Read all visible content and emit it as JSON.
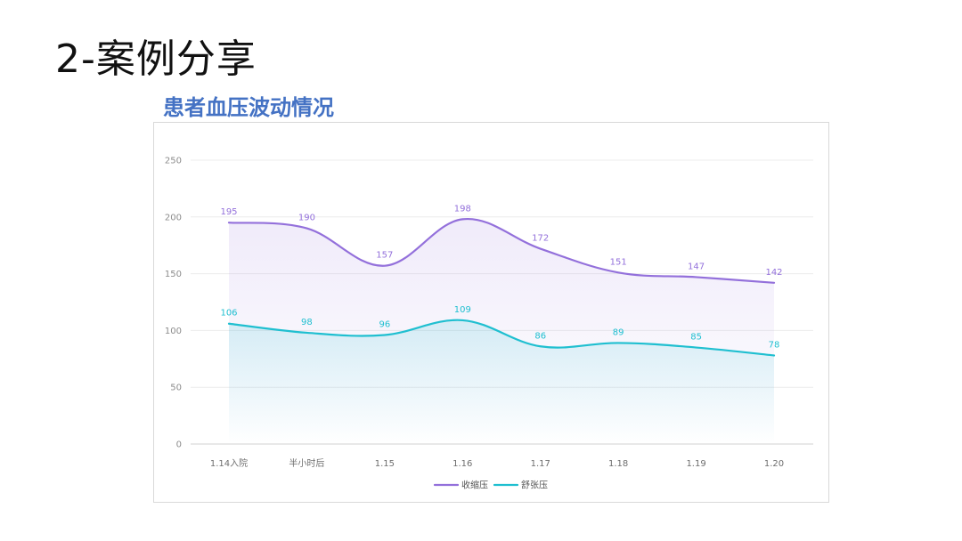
{
  "slide": {
    "title": "2-案例分享"
  },
  "chart_data": {
    "type": "line",
    "title": "患者血压波动情况",
    "categories": [
      "1.14入院",
      "半小时后",
      "1.15",
      "1.16",
      "1.17",
      "1.18",
      "1.19",
      "1.20"
    ],
    "ylim": [
      0,
      250
    ],
    "yticks": [
      0,
      50,
      100,
      150,
      200,
      250
    ],
    "grid": true,
    "smooth": true,
    "area_fill": true,
    "legend_position": "bottom-center",
    "series": [
      {
        "name": "收缩压",
        "color": "#9370db",
        "values": [
          195,
          190,
          157,
          198,
          172,
          151,
          147,
          142
        ]
      },
      {
        "name": "舒张压",
        "color": "#1fbfd0",
        "values": [
          106,
          98,
          96,
          109,
          86,
          89,
          85,
          78
        ]
      }
    ]
  }
}
